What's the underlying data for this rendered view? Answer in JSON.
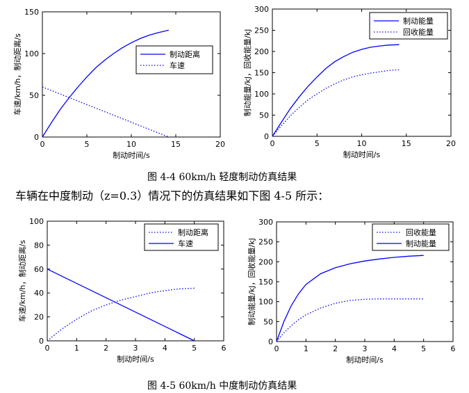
{
  "captions": {
    "fig_4_4": "图 4-4 60km/h 轻度制动仿真结果",
    "fig_4_5": "图 4-5 60km/h 中度制动仿真结果"
  },
  "body_text": "车辆在中度制动（z=0.3）情况下的仿真结果如下图 4-5 所示：",
  "colors": {
    "series": "#0000ff",
    "axis": "#000000"
  },
  "chart_data": [
    {
      "type": "line",
      "xlabel": "制动时间/s",
      "ylabel": "车速/km/h，制动距离/s",
      "xlim": [
        0,
        20
      ],
      "ylim": [
        0,
        150
      ],
      "xticks": [
        0,
        5,
        10,
        15,
        20
      ],
      "yticks": [
        0,
        50,
        100,
        150
      ],
      "legend_position": "right-middle",
      "series": [
        {
          "name": "制动距离",
          "style": "solid",
          "x": [
            0,
            1,
            2,
            3,
            4,
            5,
            6,
            7,
            8,
            9,
            10,
            11,
            12,
            13,
            14.2
          ],
          "y": [
            0,
            17,
            33,
            47,
            60,
            72,
            83,
            92,
            100,
            107,
            113,
            118,
            122,
            125,
            128
          ]
        },
        {
          "name": "车速",
          "style": "dotted",
          "x": [
            0,
            14.2
          ],
          "y": [
            60,
            0
          ]
        }
      ]
    },
    {
      "type": "line",
      "xlabel": "制动时间/s",
      "ylabel": "制动能量/kJ，回收能量/kJ",
      "xlim": [
        0,
        20
      ],
      "ylim": [
        0,
        300
      ],
      "xticks": [
        0,
        5,
        10,
        15,
        20
      ],
      "yticks": [
        0,
        50,
        100,
        150,
        200,
        250,
        300
      ],
      "legend_position": "top-right",
      "series": [
        {
          "name": "制动能量",
          "style": "solid",
          "x": [
            0,
            1,
            2,
            3,
            4,
            5,
            6,
            7,
            8,
            9,
            10,
            11,
            12,
            13,
            14.2
          ],
          "y": [
            0,
            33,
            65,
            93,
            118,
            140,
            160,
            176,
            188,
            198,
            205,
            210,
            213,
            215,
            216
          ]
        },
        {
          "name": "回收能量",
          "style": "dotted",
          "x": [
            0,
            1,
            2,
            3,
            4,
            5,
            6,
            7,
            8,
            9,
            10,
            11,
            12,
            13,
            14.2
          ],
          "y": [
            0,
            25,
            48,
            68,
            86,
            100,
            113,
            124,
            133,
            140,
            145,
            149,
            152,
            155,
            157
          ]
        }
      ]
    },
    {
      "type": "line",
      "xlabel": "制动时间/s",
      "ylabel": "车速/km/h，制动距离/s",
      "xlim": [
        0,
        6
      ],
      "ylim": [
        0,
        100
      ],
      "xticks": [
        0,
        1,
        2,
        3,
        4,
        5,
        6
      ],
      "yticks": [
        0,
        20,
        40,
        60,
        80,
        100
      ],
      "legend_position": "top-right",
      "series": [
        {
          "name": "制动距离",
          "style": "dotted",
          "x": [
            0,
            0.5,
            1,
            1.5,
            2,
            2.5,
            3,
            3.5,
            4,
            4.5,
            5
          ],
          "y": [
            0,
            10,
            18,
            25,
            30,
            34,
            37,
            40,
            42,
            43.5,
            44
          ]
        },
        {
          "name": "车速",
          "style": "solid",
          "x": [
            0,
            5
          ],
          "y": [
            60,
            0
          ]
        }
      ]
    },
    {
      "type": "line",
      "xlabel": "制动时间/s",
      "ylabel": "制动能量/kJ，回收能量/kJ",
      "xlim": [
        0,
        6
      ],
      "ylim": [
        0,
        300
      ],
      "xticks": [
        0,
        1,
        2,
        3,
        4,
        5,
        6
      ],
      "yticks": [
        0,
        50,
        100,
        150,
        200,
        250,
        300
      ],
      "legend_position": "top-right",
      "series": [
        {
          "name": "回收能量",
          "style": "dotted",
          "x": [
            0,
            0.25,
            0.5,
            0.75,
            1,
            1.5,
            2,
            2.5,
            3,
            3.5,
            4,
            4.5,
            5
          ],
          "y": [
            0,
            22,
            40,
            55,
            67,
            84,
            96,
            103,
            106,
            107,
            107,
            107,
            107
          ]
        },
        {
          "name": "制动能量",
          "style": "solid",
          "x": [
            0,
            0.25,
            0.5,
            0.75,
            1,
            1.5,
            2,
            2.5,
            3,
            3.5,
            4,
            4.5,
            5
          ],
          "y": [
            0,
            50,
            90,
            120,
            143,
            170,
            185,
            195,
            202,
            207,
            211,
            214,
            216
          ]
        }
      ]
    }
  ]
}
